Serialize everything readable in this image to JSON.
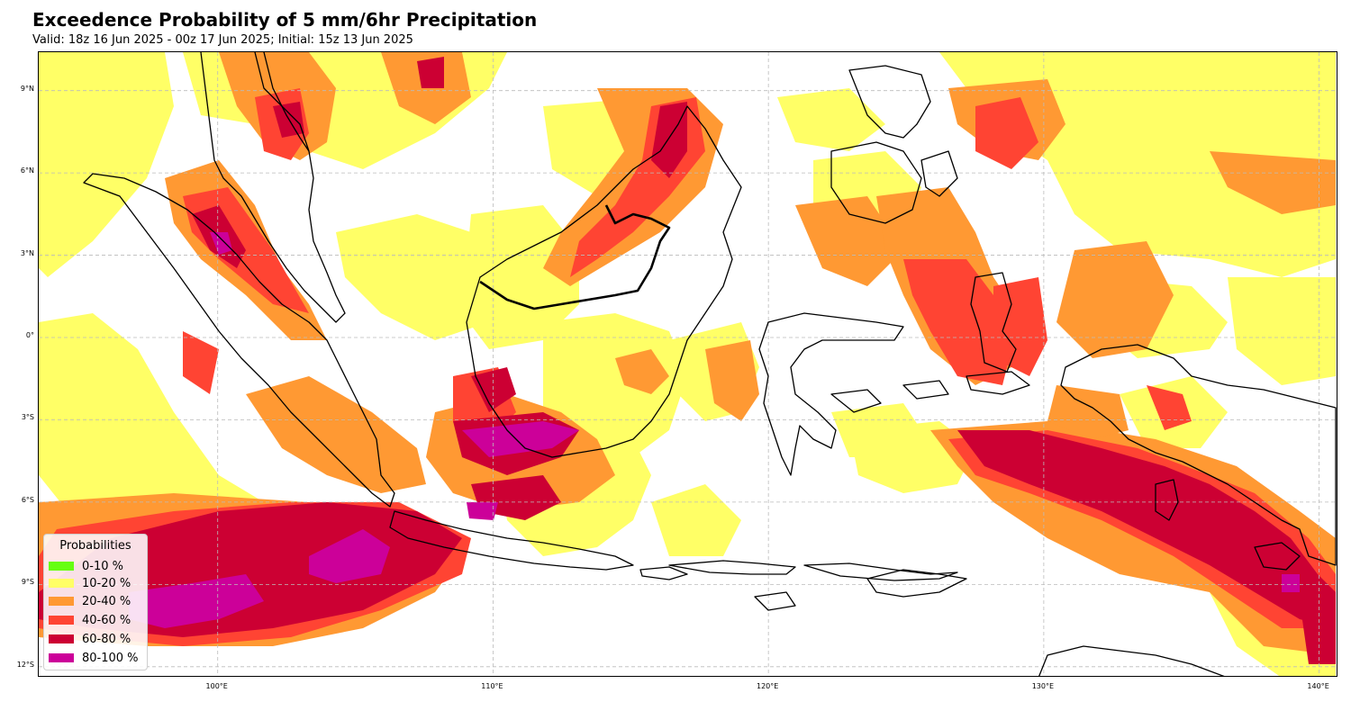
{
  "title": "Exceedence Probability of 5 mm/6hr Precipitation",
  "subtitle": "Valid: 18z 16 Jun 2025 - 00z 17 Jun 2025; Initial: 15z 13 Jun 2025",
  "map": {
    "lon_range": [
      93.5,
      140.7
    ],
    "lat_range": [
      -12.4,
      10.4
    ],
    "gridlines": "dashed",
    "coastlines": true,
    "lat_ticks": [
      {
        "value": 9,
        "label": "9°N"
      },
      {
        "value": 6,
        "label": "6°N"
      },
      {
        "value": 3,
        "label": "3°N"
      },
      {
        "value": 0,
        "label": "0°"
      },
      {
        "value": -3,
        "label": "3°S"
      },
      {
        "value": -6,
        "label": "6°S"
      },
      {
        "value": -9,
        "label": "9°S"
      },
      {
        "value": -12,
        "label": "12°S"
      }
    ],
    "lon_ticks": [
      {
        "value": 100,
        "label": "100°E"
      },
      {
        "value": 110,
        "label": "110°E"
      },
      {
        "value": 120,
        "label": "120°E"
      },
      {
        "value": 130,
        "label": "130°E"
      },
      {
        "value": 140,
        "label": "140°E"
      }
    ]
  },
  "legend": {
    "title": "Probabilities",
    "placement": "lower-left",
    "items": [
      {
        "label": "0-10 %",
        "color": "#66ff11"
      },
      {
        "label": "10-20 %",
        "color": "#ffff66"
      },
      {
        "label": "20-40 %",
        "color": "#ff9933"
      },
      {
        "label": "40-60 %",
        "color": "#ff4433"
      },
      {
        "label": "60-80 %",
        "color": "#cc0033"
      },
      {
        "label": "80-100 %",
        "color": "#cc0099"
      }
    ]
  }
}
